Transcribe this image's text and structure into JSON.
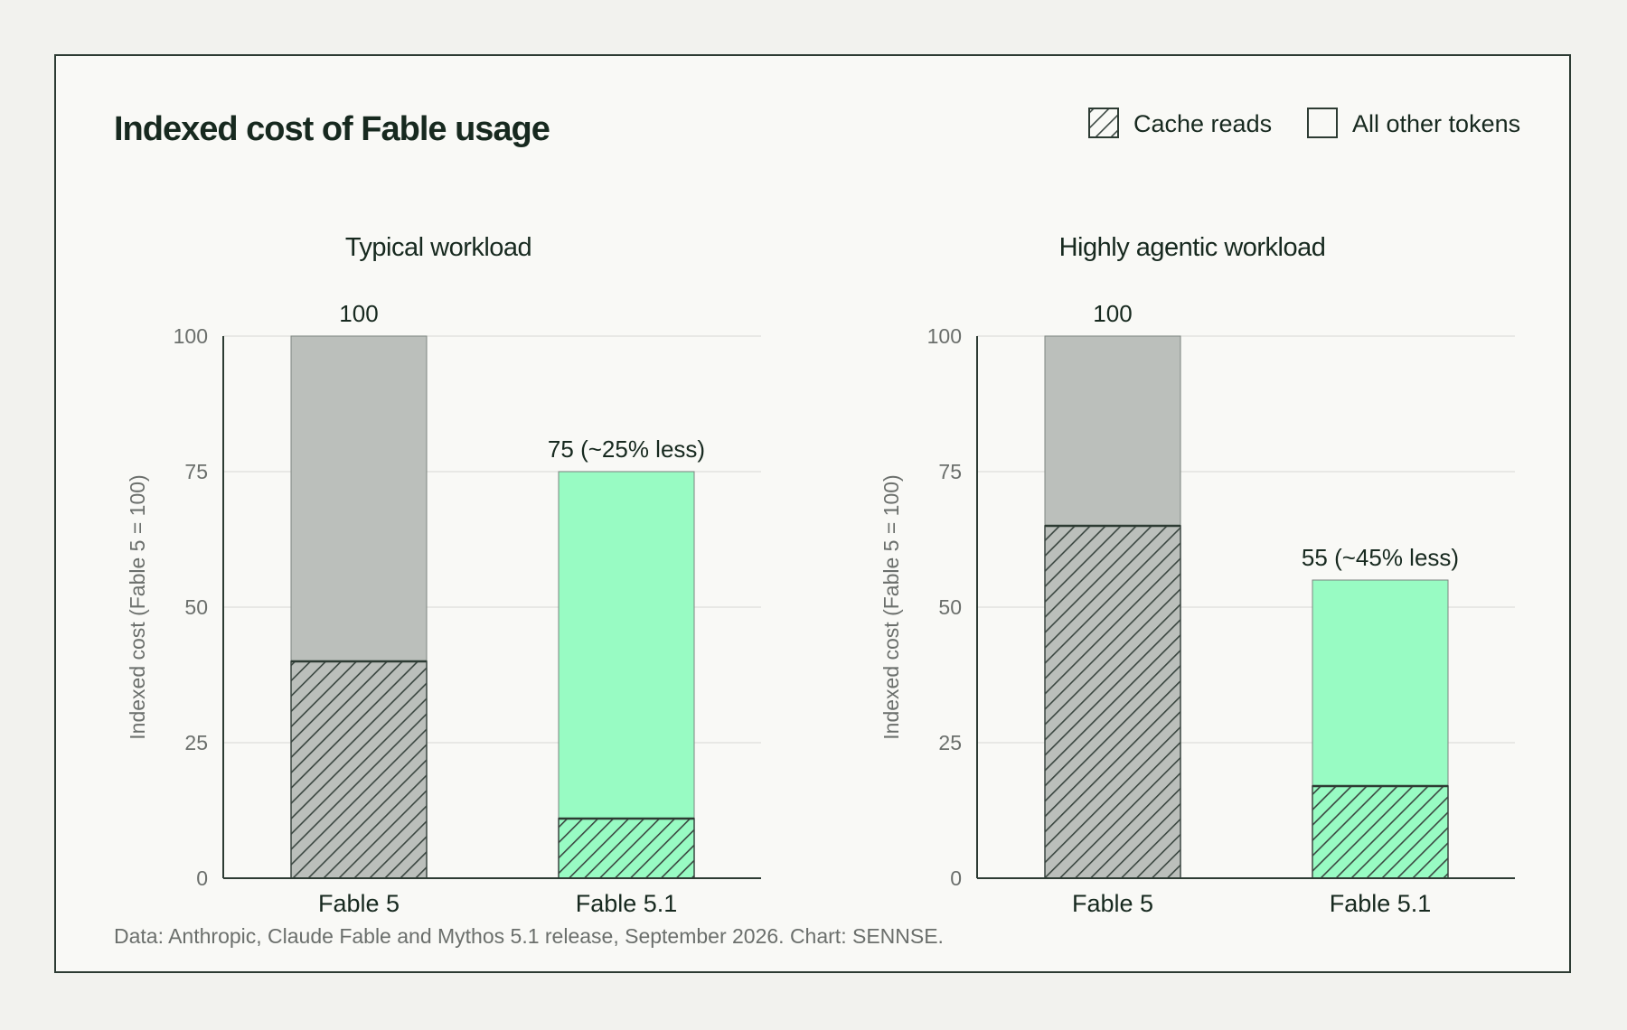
{
  "chart_data": {
    "type": "bar",
    "title": "Indexed cost of Fable usage",
    "source": "Data: Anthropic, Claude Fable and Mythos 5.1 release, September 2026. Chart: SENNSE.",
    "legend": {
      "position": "top-right",
      "entries": [
        {
          "name": "Cache reads",
          "pattern": "hatched"
        },
        {
          "name": "All other tokens",
          "pattern": "solid"
        }
      ]
    },
    "colors": {
      "fable5": "#bbbfbb",
      "fable51": "#98fbc3",
      "hatch": "#3a4640",
      "grid": "#e3e3df",
      "axis": "#2d3b33"
    },
    "stacked": true,
    "grid": true,
    "panels": [
      {
        "title": "Typical workload",
        "ylabel": "Indexed cost (Fable 5 = 100)",
        "ylim": [
          0,
          100
        ],
        "yticks": [
          0,
          25,
          50,
          75,
          100
        ],
        "categories": [
          "Fable 5",
          "Fable 5.1"
        ],
        "series": [
          {
            "name": "Cache reads",
            "values": [
              40,
              11
            ]
          },
          {
            "name": "All other tokens",
            "values": [
              60,
              64
            ]
          }
        ],
        "totals": [
          100,
          75
        ],
        "data_labels": [
          "100",
          "75 (~25% less)"
        ]
      },
      {
        "title": "Highly agentic workload",
        "ylabel": "Indexed cost (Fable 5 = 100)",
        "ylim": [
          0,
          100
        ],
        "yticks": [
          0,
          25,
          50,
          75,
          100
        ],
        "categories": [
          "Fable 5",
          "Fable 5.1"
        ],
        "series": [
          {
            "name": "Cache reads",
            "values": [
              65,
              17
            ]
          },
          {
            "name": "All other tokens",
            "values": [
              35,
              38
            ]
          }
        ],
        "totals": [
          100,
          55
        ],
        "data_labels": [
          "100",
          "55 (~45% less)"
        ]
      }
    ]
  }
}
